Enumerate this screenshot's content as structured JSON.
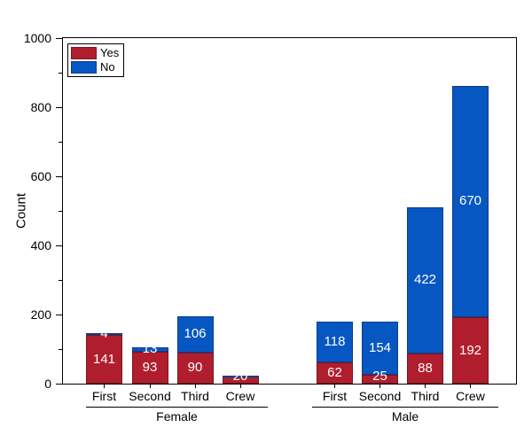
{
  "chart_data": {
    "type": "bar",
    "stacked": true,
    "title": "",
    "ylabel": "Count",
    "xlabel": "",
    "ylim": [
      0,
      1000
    ],
    "y_major_ticks": [
      0,
      200,
      400,
      600,
      800,
      1000
    ],
    "y_minor_ticks": [
      100,
      300,
      500,
      700,
      900
    ],
    "grid": false,
    "legend": {
      "position": "top-left",
      "entries": [
        "Yes",
        "No"
      ]
    },
    "groups": [
      {
        "label": "Female",
        "categories": [
          "First",
          "Second",
          "Third",
          "Crew"
        ]
      },
      {
        "label": "Male",
        "categories": [
          "First",
          "Second",
          "Third",
          "Crew"
        ]
      }
    ],
    "categories": [
      "First",
      "Second",
      "Third",
      "Crew",
      "First",
      "Second",
      "Third",
      "Crew"
    ],
    "series": [
      {
        "name": "Yes",
        "color": "#b01e2e",
        "border_color": "#7d1322",
        "values": [
          141,
          93,
          90,
          20,
          62,
          25,
          88,
          192
        ],
        "labels": [
          "141",
          "93",
          "90",
          "20",
          "62",
          "25",
          "88",
          "192"
        ]
      },
      {
        "name": "No",
        "color": "#0757c2",
        "border_color": "#0a3d8a",
        "values": [
          4,
          13,
          106,
          3,
          118,
          154,
          422,
          670
        ],
        "labels": [
          "4",
          "13",
          "106",
          "",
          "118",
          "154",
          "422",
          "670"
        ]
      }
    ]
  }
}
